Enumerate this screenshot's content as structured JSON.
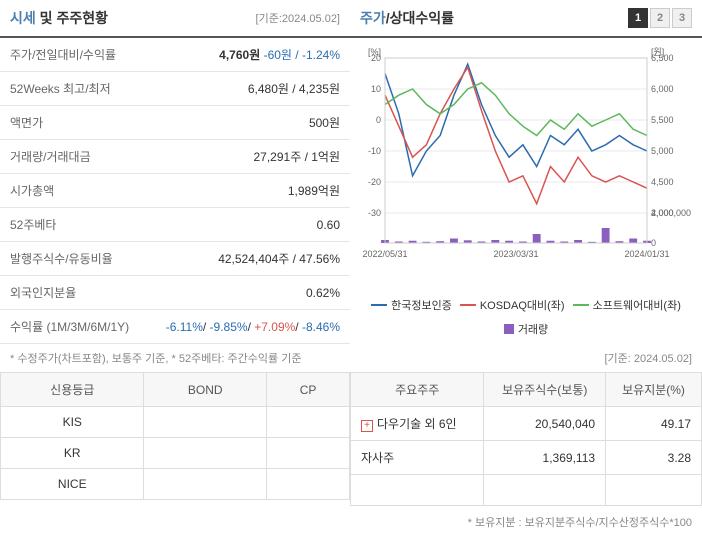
{
  "header": {
    "title_part1": "시세",
    "title_conj": " 및 ",
    "title_part2": "주주현황",
    "date_ref": "[기준:2024.05.02]"
  },
  "price_table": {
    "rows": [
      {
        "label": "주가/전일대비/수익률",
        "value": "4,760원",
        "delta": "-60원",
        "pct": "-1.24%"
      },
      {
        "label": "52Weeks 최고/최저",
        "value": "6,480원 / 4,235원"
      },
      {
        "label": "액면가",
        "value": "500원"
      },
      {
        "label": "거래량/거래대금",
        "value": "27,291주 / 1억원"
      },
      {
        "label": "시가총액",
        "value": "1,989억원"
      },
      {
        "label": "52주베타",
        "value": "0.60"
      },
      {
        "label": "발행주식수/유동비율",
        "value": "42,524,404주 / 47.56%"
      },
      {
        "label": "외국인지분율",
        "value": "0.62%"
      },
      {
        "label": "수익률 (1M/3M/6M/1Y)",
        "returns": [
          "-6.11%",
          "-9.85%",
          "+7.09%",
          "-8.46%"
        ]
      }
    ],
    "footnote": "* 수정주가(차트포함), 보통주 기준, * 52주베타: 주간수익률 기준"
  },
  "chart": {
    "title_part1": "주가",
    "title_conj": "/",
    "title_part2": "상대수익률",
    "tabs": [
      "1",
      "2",
      "3"
    ],
    "active_tab": 0,
    "left_axis": {
      "label": "[%]",
      "min": -30,
      "max": 20,
      "ticks": [
        -30,
        -20,
        -10,
        0,
        10,
        20
      ]
    },
    "right_axis": {
      "label": "[원]",
      "min": 4000,
      "max": 6500,
      "ticks": [
        4000,
        4500,
        5000,
        5500,
        6000,
        6500
      ]
    },
    "volume_axis": {
      "min": 0,
      "max": 2000000,
      "ticks": [
        0,
        2000000
      ]
    },
    "x_labels": [
      "2022/05/31",
      "2023/03/31",
      "2024/01/31"
    ],
    "series": [
      {
        "name": "한국정보인증",
        "color": "#2b6cb0",
        "type": "line",
        "data": [
          15,
          2,
          -18,
          -10,
          -5,
          8,
          18,
          5,
          -5,
          -12,
          -8,
          -15,
          -5,
          -8,
          -3,
          -10,
          -8,
          -5,
          -8,
          -10
        ]
      },
      {
        "name": "KOSDAQ대비(좌)",
        "color": "#d9534f",
        "type": "line",
        "data": [
          8,
          -2,
          -12,
          -8,
          2,
          10,
          17,
          3,
          -10,
          -20,
          -18,
          -27,
          -15,
          -20,
          -12,
          -18,
          -20,
          -18,
          -20,
          -22
        ]
      },
      {
        "name": "소프트웨어대비(좌)",
        "color": "#5cb85c",
        "type": "line",
        "data": [
          5,
          8,
          10,
          5,
          2,
          5,
          10,
          12,
          8,
          2,
          -2,
          -5,
          0,
          -3,
          2,
          -2,
          0,
          2,
          -3,
          -5
        ]
      },
      {
        "name": "거래량",
        "color": "#8b5fbf",
        "type": "bar",
        "data": [
          200000,
          100000,
          150000,
          80000,
          120000,
          300000,
          180000,
          100000,
          200000,
          150000,
          100000,
          600000,
          150000,
          100000,
          200000,
          80000,
          1000000,
          120000,
          300000,
          150000
        ]
      }
    ],
    "background_color": "#ffffff",
    "grid_color": "#e8e8e8",
    "date_ref": "[기준: 2024.05.02]"
  },
  "rating": {
    "headers": [
      "신용등급",
      "BOND",
      "CP"
    ],
    "rows": [
      {
        "agency": "KIS",
        "bond": "",
        "cp": ""
      },
      {
        "agency": "KR",
        "bond": "",
        "cp": ""
      },
      {
        "agency": "NICE",
        "bond": "",
        "cp": ""
      }
    ]
  },
  "shareholders": {
    "headers": [
      "주요주주",
      "보유주식수(보통)",
      "보유지분(%)"
    ],
    "rows": [
      {
        "expandable": true,
        "name": "다우기술 외 6인",
        "shares": "20,540,040",
        "pct": "49.17"
      },
      {
        "expandable": false,
        "name": "자사주",
        "shares": "1,369,113",
        "pct": "3.28"
      }
    ],
    "footnote": "* 보유지분 : 보유지분주식수/지수산정주식수*100"
  }
}
